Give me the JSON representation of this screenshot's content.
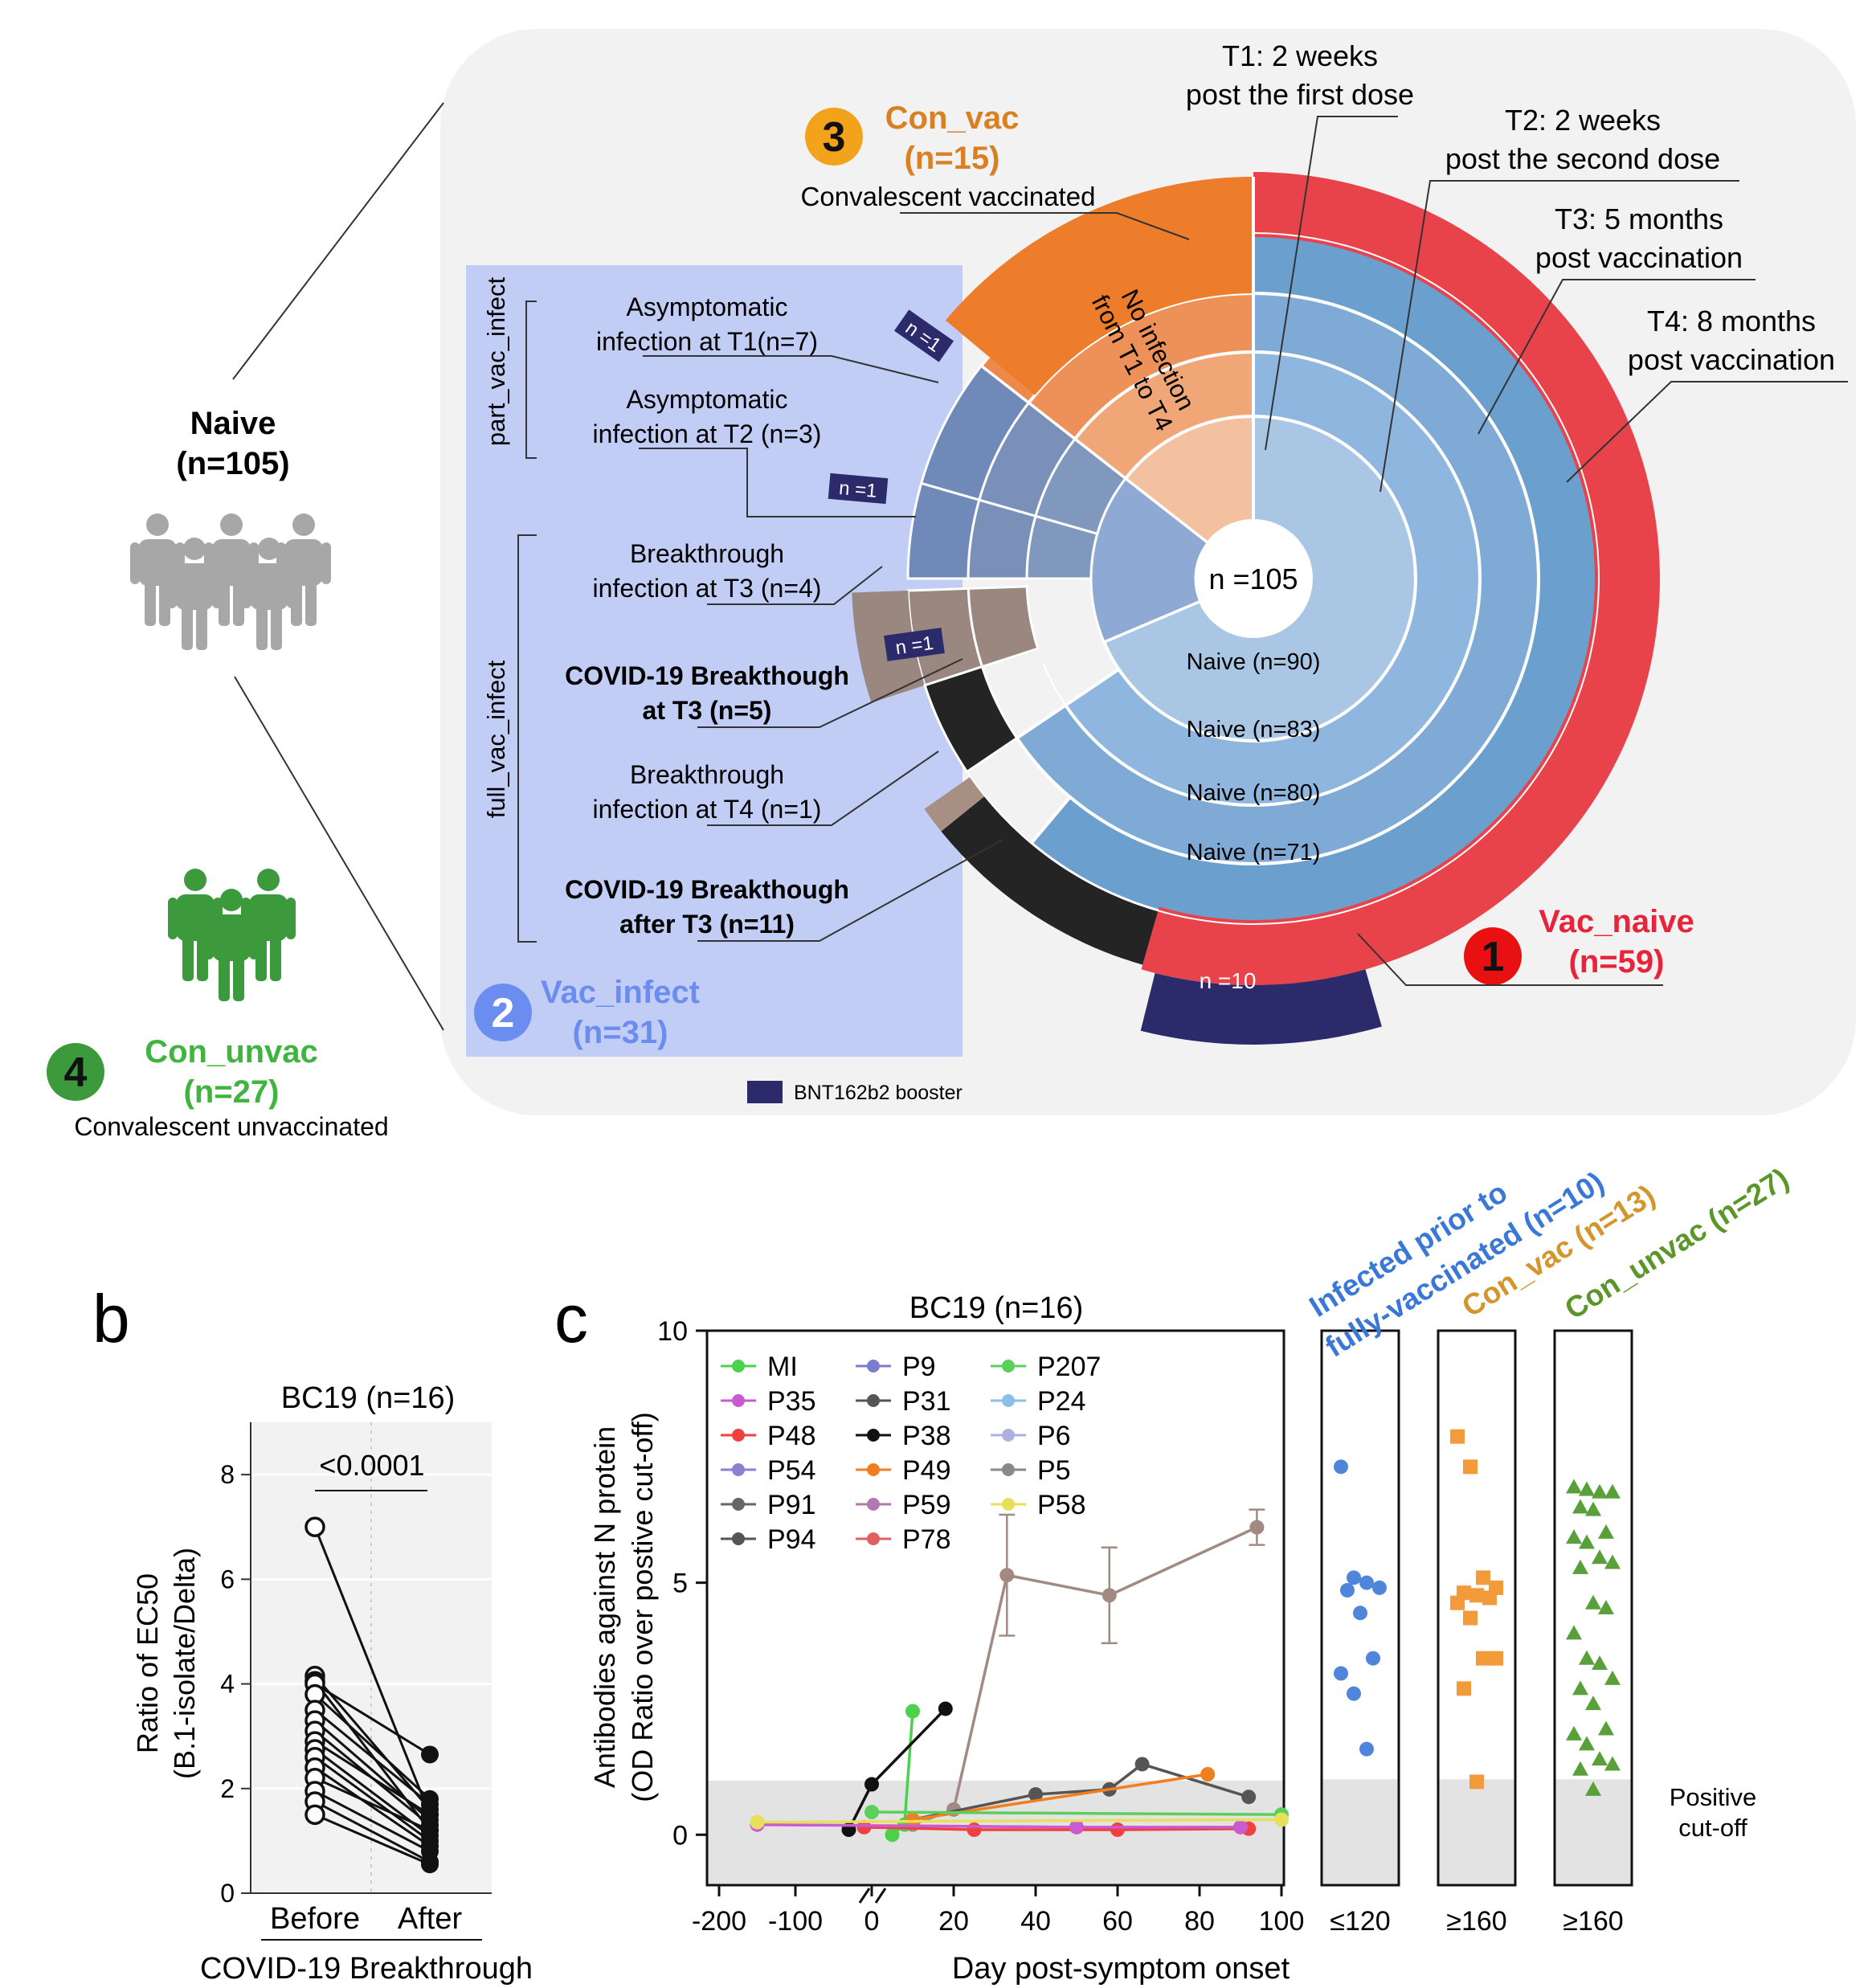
{
  "diagram": {
    "naive_label": "Naive",
    "naive_n": "(n=105)",
    "con_unvac_num": "4",
    "con_unvac_label": "Con_unvac",
    "con_unvac_n": "(n=27)",
    "con_unvac_desc": "Convalescent unvaccinated",
    "con_vac_num": "3",
    "con_vac_label": "Con_vac",
    "con_vac_n": "(n=15)",
    "con_vac_desc": "Convalescent vaccinated",
    "vac_infect_num": "2",
    "vac_infect_label": "Vac_infect",
    "vac_infect_n": "(n=31)",
    "vac_naive_num": "1",
    "vac_naive_label": "Vac_naive",
    "vac_naive_n": "(n=59)",
    "center_label": "n =105",
    "no_infection_1": "No infection",
    "no_infection_2": "from T1 to T4",
    "ring_labels": [
      "Naive (n=90)",
      "Naive (n=83)",
      "Naive (n=80)",
      "Naive (n=71)"
    ],
    "timepoints": [
      {
        "line1": "T1: 2 weeks",
        "line2": "post the first dose"
      },
      {
        "line1": "T2: 2 weeks",
        "line2": "post the second dose"
      },
      {
        "line1": "T3: 5 months",
        "line2": "post vaccination"
      },
      {
        "line1": "T4: 8 months",
        "line2": "post vaccination"
      }
    ],
    "part_vac_infect": "part_vac_infect",
    "full_vac_infect": "full_vac_infect",
    "infections": [
      {
        "line1": "Asymptomatic",
        "line2": "infection at T1(n=7)",
        "bold": false
      },
      {
        "line1": "Asymptomatic",
        "line2": "infection at T2 (n=3)",
        "bold": false
      },
      {
        "line1": "Breakthrough",
        "line2": "infection at T3 (n=4)",
        "bold": false
      },
      {
        "line1": "COVID-19 Breakthough",
        "line2": "at T3 (n=5)",
        "bold": true
      },
      {
        "line1": "Breakthrough",
        "line2": "infection at T4 (n=1)",
        "bold": false
      },
      {
        "line1": "COVID-19 Breakthough",
        "line2": "after T3 (n=11)",
        "bold": true
      }
    ],
    "booster_tags": [
      "n =1",
      "n =1",
      "n =1"
    ],
    "booster_large": "n =10",
    "legend_booster": "BNT162b2 booster",
    "colors": {
      "vac_naive": "#e8434b",
      "con_vac": "#ee7d2b",
      "naive_blue": "#6a9fce",
      "vac_infect_panel": "#c2cdf6",
      "booster": "#2b2a6b",
      "con_unvac": "#3c9a3c"
    }
  },
  "panel_b": {
    "letter": "b",
    "title": "BC19 (n=16)",
    "p_value": "<0.0001",
    "ylabel_1": "Ratio of EC50",
    "ylabel_2": "(B.1-isolate/Delta)",
    "xlabel": "COVID-19 Breakthrough",
    "categories": [
      "Before",
      "After"
    ],
    "yticks": [
      "0",
      "2",
      "4",
      "6",
      "8"
    ]
  },
  "panel_c": {
    "letter": "c",
    "title": "BC19 (n=16)",
    "ylabel_1": "Antibodies against N protein",
    "ylabel_2": "(OD Ratio over postive cut-off)",
    "xlabel": "Day post-symptom onset",
    "yticks": [
      "0",
      "5",
      "10"
    ],
    "xticks_a": [
      "-200",
      "-100",
      "0"
    ],
    "xticks_b": [
      "20",
      "40",
      "60",
      "80",
      "100"
    ],
    "cutoff_1": "Positive",
    "cutoff_2": "cut-off",
    "legend": [
      "MI",
      "P35",
      "P48",
      "P54",
      "P91",
      "P94",
      "P9",
      "P31",
      "P38",
      "P49",
      "P59",
      "P78",
      "P207",
      "P24",
      "P6",
      "P5",
      "P58"
    ],
    "strip_labels": [
      "Infected prior to",
      "fully-vaccinated (n=10)",
      "Con_vac (n=13)",
      "Con_unvac (n=27)"
    ],
    "strip_ticks": [
      "≤120",
      "≥160",
      "≥160"
    ]
  },
  "chart_data": [
    {
      "type": "scatter",
      "title": "BC19 (n=16)",
      "xlabel": "COVID-19 Breakthrough",
      "ylabel": "Ratio of EC50 (B.1-isolate/Delta)",
      "categories": [
        "Before",
        "After"
      ],
      "ylim": [
        0,
        9
      ],
      "paired": [
        [
          7.0,
          1.5
        ],
        [
          4.15,
          1.6
        ],
        [
          4.05,
          1.2
        ],
        [
          4.0,
          2.65
        ],
        [
          3.8,
          1.8
        ],
        [
          3.5,
          1.7
        ],
        [
          3.3,
          1.4
        ],
        [
          3.1,
          1.3
        ],
        [
          2.9,
          1.5
        ],
        [
          2.75,
          1.1
        ],
        [
          2.6,
          1.0
        ],
        [
          2.4,
          0.9
        ],
        [
          2.2,
          1.2
        ],
        [
          1.95,
          0.8
        ],
        [
          1.75,
          0.6
        ],
        [
          1.5,
          0.55
        ]
      ],
      "annotations": [
        "<0.0001"
      ]
    },
    {
      "type": "line",
      "title": "BC19 (n=16)",
      "xlabel": "Day post-symptom onset",
      "ylabel": "Antibodies against N protein (OD Ratio over postive cut-off)",
      "ylim": [
        -1,
        10
      ],
      "positive_cutoff": 1.1,
      "series": [
        {
          "name": "MI",
          "color": "#4bd14b",
          "x": [
            5,
            8,
            10
          ],
          "y": [
            0.0,
            0.2,
            2.45
          ]
        },
        {
          "name": "P38",
          "color": "#111111",
          "x": [
            -30,
            0,
            18
          ],
          "y": [
            0.1,
            1.0,
            2.5
          ]
        },
        {
          "name": "P24",
          "color": "#a28a82",
          "x": [
            10,
            20,
            33,
            58,
            94
          ],
          "y": [
            0.2,
            0.5,
            5.15,
            4.75,
            6.1
          ]
        },
        {
          "name": "P94",
          "color": "#555555",
          "x": [
            10,
            40,
            58,
            66,
            92
          ],
          "y": [
            0.3,
            0.8,
            0.9,
            1.4,
            0.75
          ]
        },
        {
          "name": "P49",
          "color": "#f07f20",
          "x": [
            10,
            82
          ],
          "y": [
            0.3,
            1.2
          ]
        },
        {
          "name": "P48",
          "color": "#f04040",
          "x": [
            -10,
            25,
            60,
            92
          ],
          "y": [
            0.15,
            0.1,
            0.1,
            0.12
          ]
        },
        {
          "name": "P35",
          "color": "#c95ad0",
          "x": [
            -150,
            50,
            90
          ],
          "y": [
            0.2,
            0.15,
            0.15
          ]
        },
        {
          "name": "P207",
          "color": "#5ad05a",
          "x": [
            0,
            100
          ],
          "y": [
            0.45,
            0.4
          ]
        },
        {
          "name": "P58",
          "color": "#e8e05a",
          "x": [
            -150,
            100
          ],
          "y": [
            0.25,
            0.3
          ]
        }
      ]
    },
    {
      "type": "scatter",
      "title": "Infected prior to fully-vaccinated (n=10)",
      "xlabel": "≤120",
      "ylim": [
        -1,
        10
      ],
      "values": [
        7.3,
        5.1,
        5.0,
        4.9,
        4.85,
        4.4,
        3.5,
        3.2,
        2.8,
        1.7
      ]
    },
    {
      "type": "scatter",
      "title": "Con_vac (n=13)",
      "xlabel": "≥160",
      "ylim": [
        -1,
        10
      ],
      "values": [
        7.9,
        7.3,
        5.1,
        4.9,
        4.8,
        4.75,
        4.7,
        4.6,
        4.3,
        3.5,
        3.5,
        2.9,
        1.05
      ]
    },
    {
      "type": "scatter",
      "title": "Con_unvac (n=27)",
      "xlabel": "≥160",
      "ylim": [
        -1,
        10
      ],
      "values": [
        6.9,
        6.85,
        6.8,
        6.8,
        6.5,
        6.45,
        6.0,
        5.9,
        5.8,
        5.5,
        5.4,
        5.3,
        4.6,
        4.5,
        4.0,
        3.5,
        3.4,
        3.1,
        2.9,
        2.6,
        2.1,
        2.0,
        1.8,
        1.5,
        1.4,
        1.3,
        0.9
      ]
    }
  ]
}
